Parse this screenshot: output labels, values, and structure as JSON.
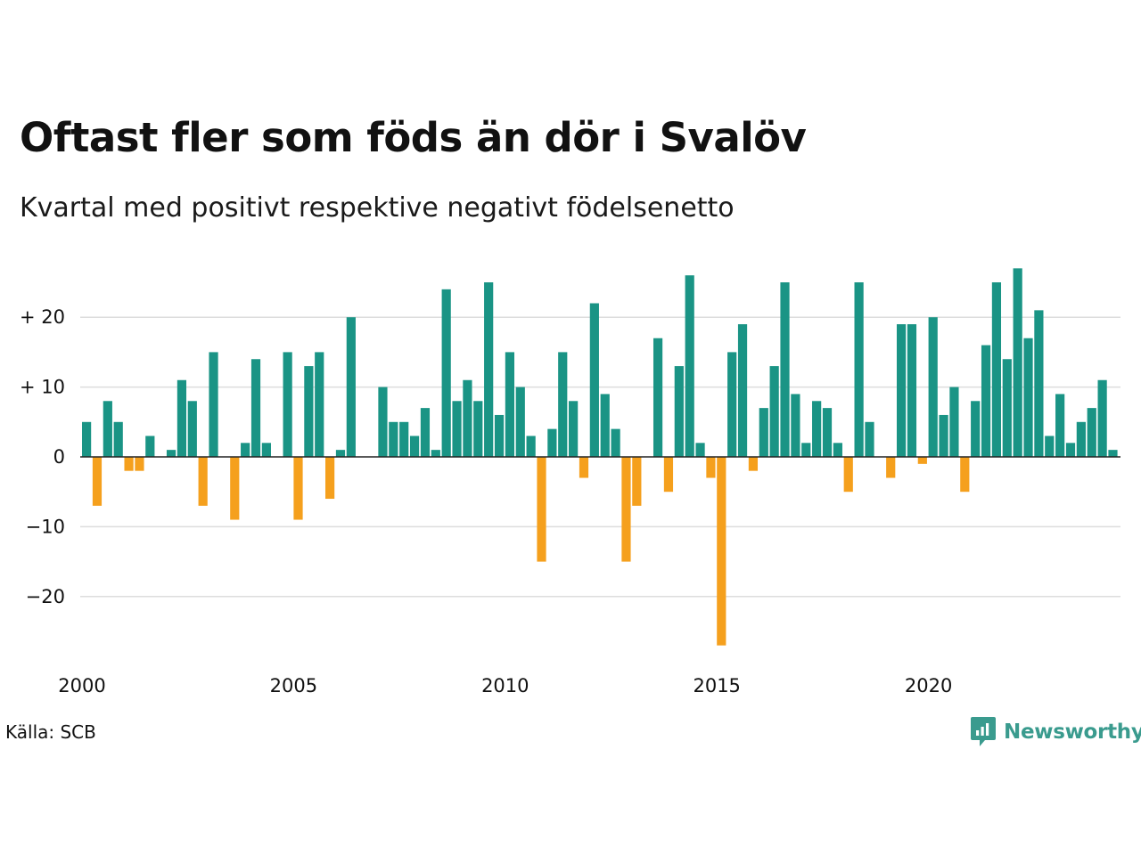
{
  "title": "Oftast fler som föds än dör i Svalöv",
  "subtitle": "Kvartal med positivt respektive negativt födelsenetto",
  "source": "Källa: SCB",
  "brand": {
    "name": "Newsworthy",
    "color": "#3a9b8e",
    "icon": "newsworthy-logo-icon"
  },
  "colors": {
    "positive": "#1a9485",
    "negative": "#f5a01d",
    "grid": "#dddddd",
    "zero_line": "#222222"
  },
  "chart_data": {
    "type": "bar",
    "title": "Oftast fler som föds än dör i Svalöv",
    "subtitle": "Kvartal med positivt respektive negativt födelsenetto",
    "xlabel": "",
    "ylabel": "",
    "x_start_year": 2000,
    "periods_per_year": 4,
    "xticks": [
      {
        "year": 2000,
        "label": "2000"
      },
      {
        "year": 2005,
        "label": "2005"
      },
      {
        "year": 2010,
        "label": "2010"
      },
      {
        "year": 2015,
        "label": "2015"
      },
      {
        "year": 2020,
        "label": "2020"
      }
    ],
    "yticks": [
      {
        "value": 20,
        "label": "+ 20"
      },
      {
        "value": 10,
        "label": "+ 10"
      },
      {
        "value": 0,
        "label": "0"
      },
      {
        "value": -10,
        "label": "−10"
      },
      {
        "value": -20,
        "label": "−20"
      }
    ],
    "ylim": [
      -28,
      27
    ],
    "grid": true,
    "values": [
      5,
      -7,
      8,
      5,
      -2,
      -2,
      3,
      0,
      1,
      11,
      8,
      -7,
      15,
      0,
      -9,
      2,
      14,
      2,
      0,
      15,
      -9,
      13,
      15,
      -6,
      1,
      20,
      0,
      0,
      10,
      5,
      5,
      3,
      7,
      1,
      24,
      8,
      11,
      8,
      25,
      6,
      15,
      10,
      3,
      -15,
      4,
      15,
      8,
      -3,
      22,
      9,
      4,
      -15,
      -7,
      0,
      17,
      -5,
      13,
      26,
      2,
      -3,
      -27,
      15,
      19,
      -2,
      7,
      13,
      25,
      9,
      2,
      8,
      7,
      2,
      -5,
      25,
      5,
      0,
      -3,
      19,
      19,
      -1,
      20,
      6,
      10,
      -5,
      8,
      16,
      25,
      14,
      27,
      17,
      21,
      3,
      9,
      2,
      5,
      7,
      11,
      1
    ]
  }
}
